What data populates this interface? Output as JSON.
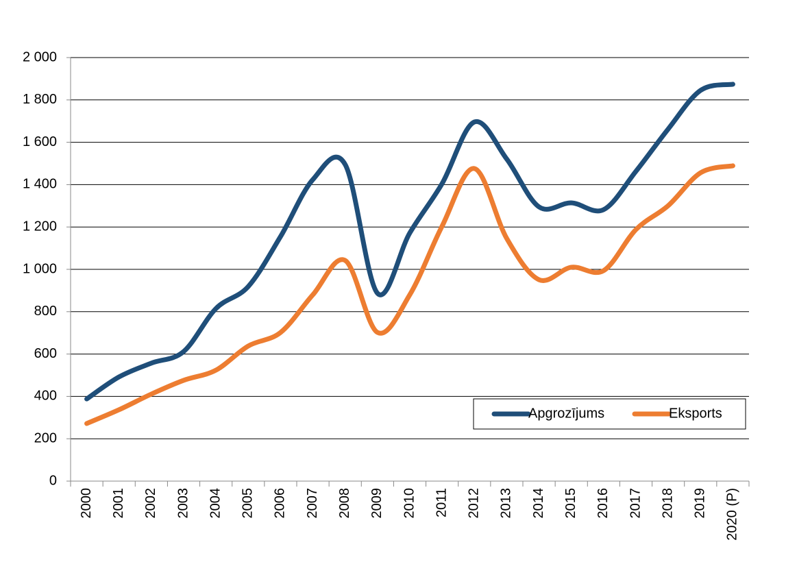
{
  "chart_data": {
    "type": "line",
    "categories": [
      "2000",
      "2001",
      "2002",
      "2003",
      "2004",
      "2005",
      "2006",
      "2007",
      "2008",
      "2009",
      "2010",
      "2011",
      "2012",
      "2013",
      "2014",
      "2015",
      "2016",
      "2017",
      "2018",
      "2019",
      "2020 (P)"
    ],
    "series": [
      {
        "name": "Apgrozījums",
        "color": "#1f4e79",
        "values": [
          388,
          492,
          557,
          612,
          815,
          919,
          1155,
          1424,
          1495,
          887,
          1172,
          1405,
          1696,
          1521,
          1295,
          1314,
          1282,
          1463,
          1663,
          1845,
          1874
        ]
      },
      {
        "name": "Eksports",
        "color": "#ed7d31",
        "values": [
          272,
          337,
          411,
          476,
          524,
          638,
          702,
          880,
          1042,
          702,
          880,
          1204,
          1476,
          1146,
          951,
          1010,
          994,
          1188,
          1301,
          1456,
          1489
        ]
      }
    ],
    "ylim": [
      0,
      2000
    ],
    "yticks": [
      0,
      200,
      400,
      600,
      800,
      {
        "value": 1000,
        "label": "1 000"
      },
      {
        "value": 1200,
        "label": "1 200"
      },
      {
        "value": 1400,
        "label": "1 400"
      },
      {
        "value": 1600,
        "label": "1 600"
      },
      {
        "value": 1800,
        "label": "1 800"
      },
      {
        "value": 2000,
        "label": "2 000"
      }
    ],
    "grid": true,
    "smooth": true,
    "legend": "lower right"
  }
}
